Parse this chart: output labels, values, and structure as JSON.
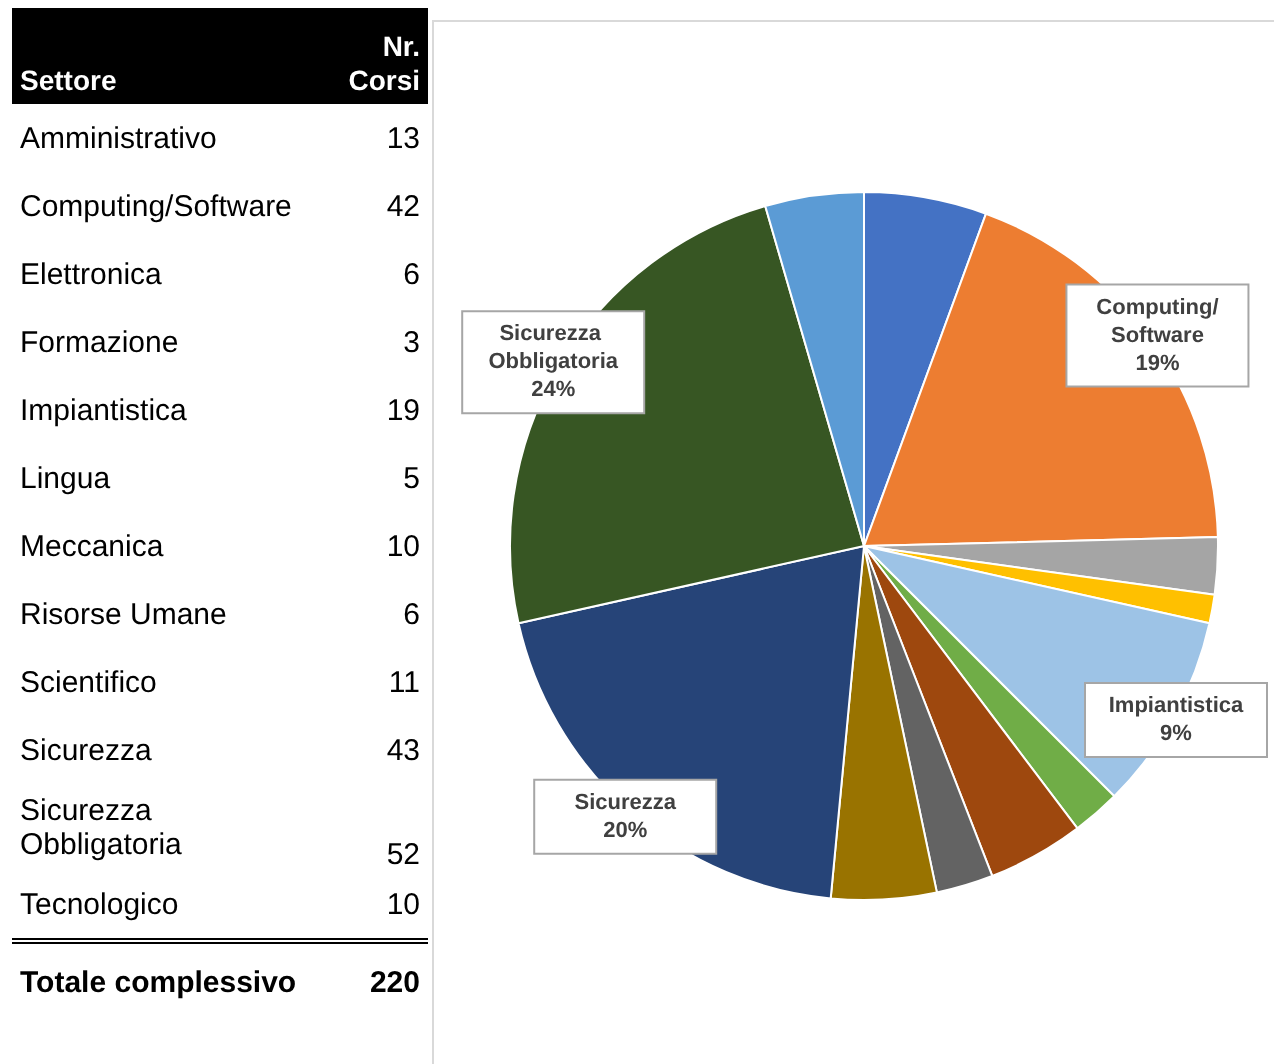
{
  "chart_data": [
    {
      "type": "other",
      "xlabel": "Settore",
      "ylabel": "Nr. Corsi",
      "categories": [
        "Amministrativo",
        "Computing/Software",
        "Elettronica",
        "Formazione",
        "Impiantistica",
        "Lingua",
        "Meccanica",
        "Risorse Umane",
        "Scientifico",
        "Sicurezza",
        "Sicurezza Obbligatoria",
        "Tecnologico"
      ],
      "values": [
        13,
        42,
        6,
        3,
        19,
        5,
        10,
        6,
        11,
        43,
        52,
        10
      ],
      "data_labels": true,
      "totals": [
        "220"
      ],
      "annotations": [
        "Totale complessivo"
      ]
    },
    {
      "type": "pie",
      "categories": [
        null,
        "Computing/Software",
        null,
        null,
        "Impiantistica",
        null,
        null,
        null,
        null,
        "Sicurezza",
        "Sicurezza Obbligatoria",
        null
      ],
      "values": [
        5.6,
        19,
        2.6,
        1.3,
        9,
        2.2,
        4.4,
        2.6,
        4.8,
        20,
        24,
        4.5
      ],
      "colors": [
        "#4472c4",
        "#ed7d31",
        "#a5a5a5",
        "#ffc000",
        "#9dc3e6",
        "#70ad47",
        "#9e480e",
        "#636363",
        "#997300",
        "#264478",
        "#375623",
        "#5b9bd5"
      ],
      "value_labels": [
        null,
        "19%",
        null,
        null,
        "9%",
        null,
        null,
        null,
        null,
        "20%",
        "24%",
        null
      ],
      "legend": false
    }
  ]
}
